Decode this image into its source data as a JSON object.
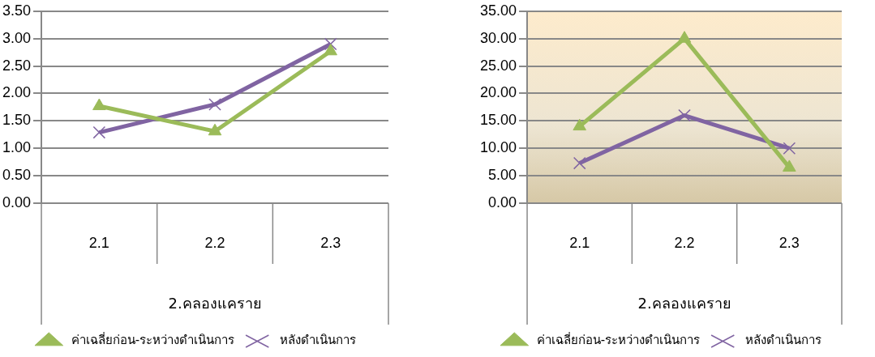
{
  "chart_data": [
    {
      "type": "line",
      "xlabel": "2.คลองแคราย",
      "categories": [
        "2.1",
        "2.2",
        "2.3"
      ],
      "series": [
        {
          "name": "ค่าเฉลี่ยก่อน-ระหว่างดำเนินการ",
          "color": "#9bbb59",
          "marker": "triangle",
          "values": [
            1.77,
            1.31,
            2.77
          ]
        },
        {
          "name": "หลังดำเนินการ",
          "color": "#8064a2",
          "marker": "cross",
          "values": [
            1.29,
            1.8,
            2.9
          ]
        }
      ],
      "ylim": [
        0,
        3.5
      ],
      "yticks": [
        {
          "value": 0,
          "label": "0.00"
        },
        {
          "value": 0.5,
          "label": "0.50"
        },
        {
          "value": 1,
          "label": "1.00"
        },
        {
          "value": 1.5,
          "label": "1.50"
        },
        {
          "value": 2,
          "label": "2.00"
        },
        {
          "value": 2.5,
          "label": "2.50"
        },
        {
          "value": 3,
          "label": "3.00"
        },
        {
          "value": 3.5,
          "label": "3.50"
        }
      ],
      "grid": "y",
      "legend": "bottom"
    },
    {
      "type": "line",
      "xlabel": "2.คลองแคราย",
      "categories": [
        "2.1",
        "2.2",
        "2.3"
      ],
      "series": [
        {
          "name": "ค่าเฉลี่ยก่อน-ระหว่างดำเนินการ",
          "color": "#9bbb59",
          "marker": "triangle",
          "values": [
            14,
            30,
            6.5
          ]
        },
        {
          "name": "หลังดำเนินการ",
          "color": "#8064a2",
          "marker": "cross",
          "values": [
            7.3,
            16,
            10
          ]
        }
      ],
      "ylim": [
        0,
        35
      ],
      "yticks": [
        {
          "value": 0,
          "label": "0.00"
        },
        {
          "value": 5,
          "label": "5.00"
        },
        {
          "value": 10,
          "label": "10.00"
        },
        {
          "value": 15,
          "label": "15.00"
        },
        {
          "value": 20,
          "label": "20.00"
        },
        {
          "value": 25,
          "label": "25.00"
        },
        {
          "value": 30,
          "label": "30.00"
        },
        {
          "value": 35,
          "label": "35.00"
        }
      ],
      "grid": "y",
      "legend": "bottom"
    }
  ]
}
